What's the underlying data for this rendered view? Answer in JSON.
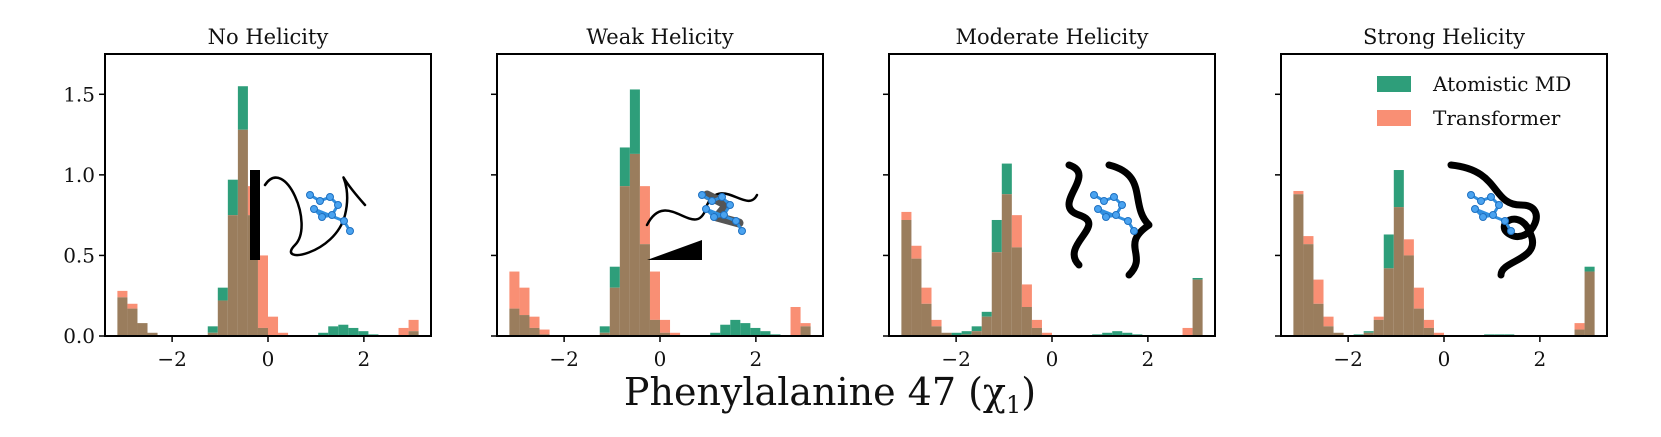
{
  "figure": {
    "xlabel": "Phenylalanine 47 (χ",
    "xlabel_sub": "1",
    "xlabel_close": ")"
  },
  "colors": {
    "md": "#2e9e7a",
    "tf": "#f98f74",
    "overlap": "#9a7d5d"
  },
  "chart_data": [
    {
      "type": "bar",
      "title": "No Helicity",
      "xlim": [
        -3.4,
        3.4
      ],
      "ylim": [
        0,
        1.75
      ],
      "xticks": [
        -2,
        0,
        2
      ],
      "xtick_labels": [
        "−2",
        "0",
        "2"
      ],
      "yticks": [
        0,
        0.5,
        1.0,
        1.5
      ],
      "ytick_labels": [
        "0.0",
        "0.5",
        "1.0",
        "1.5"
      ],
      "bin_start": -3.14159,
      "bin_width": 0.20944,
      "series": [
        {
          "name": "Atomistic MD",
          "values": [
            0.24,
            0.17,
            0.08,
            0.02,
            0.0,
            0.0,
            0.0,
            0.0,
            0.0,
            0.06,
            0.3,
            0.97,
            1.55,
            0.75,
            0.05,
            0.0,
            0.0,
            0.0,
            0.0,
            0.0,
            0.02,
            0.06,
            0.07,
            0.05,
            0.03,
            0.01,
            0.0,
            0.0,
            0.0,
            0.03
          ]
        },
        {
          "name": "Transformer",
          "values": [
            0.28,
            0.2,
            0.08,
            0.02,
            0.0,
            0.0,
            0.0,
            0.0,
            0.0,
            0.02,
            0.22,
            0.75,
            1.28,
            0.93,
            0.5,
            0.12,
            0.02,
            0.0,
            0.0,
            0.0,
            0.0,
            0.0,
            0.0,
            0.0,
            0.0,
            0.0,
            0.0,
            0.0,
            0.05,
            0.1
          ]
        }
      ]
    },
    {
      "type": "bar",
      "title": "Weak Helicity",
      "xlim": [
        -3.4,
        3.4
      ],
      "ylim": [
        0,
        1.75
      ],
      "xticks": [
        -2,
        0,
        2
      ],
      "xtick_labels": [
        "−2",
        "0",
        "2"
      ],
      "yticks": [
        0,
        0.5,
        1.0,
        1.5
      ],
      "ytick_labels": [
        "",
        "",
        "",
        ""
      ],
      "bin_start": -3.14159,
      "bin_width": 0.20944,
      "series": [
        {
          "name": "Atomistic MD",
          "values": [
            0.17,
            0.13,
            0.05,
            0.01,
            0.0,
            0.0,
            0.0,
            0.0,
            0.0,
            0.06,
            0.43,
            1.17,
            1.53,
            0.57,
            0.1,
            0.02,
            0.0,
            0.0,
            0.0,
            0.0,
            0.02,
            0.07,
            0.1,
            0.08,
            0.05,
            0.03,
            0.01,
            0.0,
            0.0,
            0.06
          ]
        },
        {
          "name": "Transformer",
          "values": [
            0.4,
            0.3,
            0.12,
            0.04,
            0.0,
            0.0,
            0.0,
            0.0,
            0.0,
            0.02,
            0.3,
            0.93,
            1.13,
            0.93,
            0.4,
            0.1,
            0.02,
            0.0,
            0.0,
            0.0,
            0.0,
            0.0,
            0.0,
            0.0,
            0.0,
            0.0,
            0.0,
            0.0,
            0.18,
            0.08
          ]
        }
      ]
    },
    {
      "type": "bar",
      "title": "Moderate Helicity",
      "xlim": [
        -3.4,
        3.4
      ],
      "ylim": [
        0,
        1.75
      ],
      "xticks": [
        -2,
        0,
        2
      ],
      "xtick_labels": [
        "−2",
        "0",
        "2"
      ],
      "yticks": [
        0,
        0.5,
        1.0,
        1.5
      ],
      "ytick_labels": [
        "",
        "",
        "",
        ""
      ],
      "bin_start": -3.14159,
      "bin_width": 0.20944,
      "series": [
        {
          "name": "Atomistic MD",
          "values": [
            0.72,
            0.48,
            0.2,
            0.06,
            0.02,
            0.02,
            0.03,
            0.06,
            0.15,
            0.72,
            1.07,
            0.55,
            0.18,
            0.05,
            0.0,
            0.0,
            0.0,
            0.0,
            0.0,
            0.01,
            0.02,
            0.03,
            0.02,
            0.01,
            0.0,
            0.0,
            0.0,
            0.0,
            0.0,
            0.36
          ]
        },
        {
          "name": "Transformer",
          "values": [
            0.77,
            0.56,
            0.3,
            0.1,
            0.02,
            0.0,
            0.01,
            0.03,
            0.12,
            0.52,
            0.88,
            0.75,
            0.32,
            0.1,
            0.02,
            0.0,
            0.0,
            0.0,
            0.0,
            0.0,
            0.0,
            0.0,
            0.0,
            0.0,
            0.0,
            0.0,
            0.0,
            0.0,
            0.05,
            0.35
          ]
        }
      ]
    },
    {
      "type": "bar",
      "title": "Strong Helicity",
      "xlim": [
        -3.4,
        3.4
      ],
      "ylim": [
        0,
        1.75
      ],
      "xticks": [
        -2,
        0,
        2
      ],
      "xtick_labels": [
        "−2",
        "0",
        "2"
      ],
      "yticks": [
        0,
        0.5,
        1.0,
        1.5
      ],
      "ytick_labels": [
        "",
        "",
        "",
        ""
      ],
      "bin_start": -3.14159,
      "bin_width": 0.20944,
      "legend": {
        "loc": "top-right",
        "entries": [
          "Atomistic MD",
          "Transformer"
        ]
      },
      "series": [
        {
          "name": "Atomistic MD",
          "values": [
            0.88,
            0.57,
            0.2,
            0.06,
            0.02,
            0.0,
            0.01,
            0.03,
            0.1,
            0.63,
            1.03,
            0.5,
            0.17,
            0.05,
            0.0,
            0.0,
            0.0,
            0.0,
            0.0,
            0.01,
            0.01,
            0.01,
            0.0,
            0.0,
            0.0,
            0.0,
            0.0,
            0.0,
            0.04,
            0.43
          ]
        },
        {
          "name": "Transformer",
          "values": [
            0.9,
            0.62,
            0.35,
            0.12,
            0.02,
            0.0,
            0.0,
            0.02,
            0.12,
            0.42,
            0.8,
            0.6,
            0.3,
            0.1,
            0.02,
            0.0,
            0.0,
            0.0,
            0.0,
            0.0,
            0.0,
            0.0,
            0.0,
            0.0,
            0.0,
            0.0,
            0.0,
            0.0,
            0.08,
            0.4
          ]
        }
      ]
    }
  ]
}
